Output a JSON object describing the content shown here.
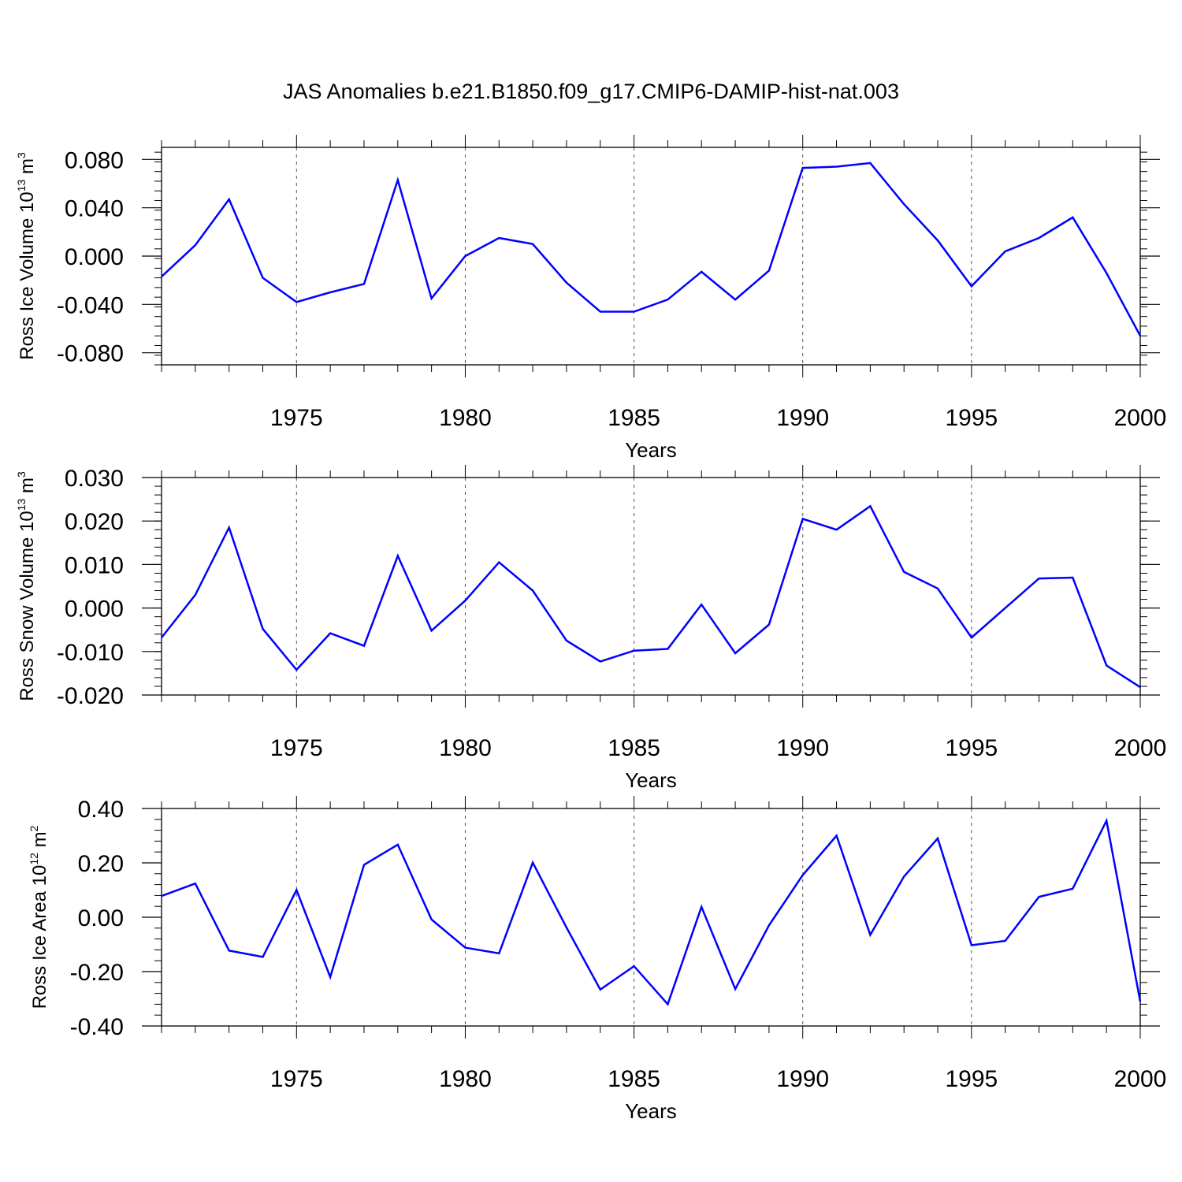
{
  "title": "JAS Anomalies b.e21.B1850.f09_g17.CMIP6-DAMIP-hist-nat.003",
  "colors": {
    "line": "#0000ff",
    "axis": "#000000",
    "grid": "#555555"
  },
  "chart_data": [
    {
      "type": "line",
      "ylabel": {
        "text": "Ross Ice Volume 10",
        "sup1": "13",
        "mid": " m",
        "sup2": "3"
      },
      "xlabel": "Years",
      "xlim": [
        1971,
        2000
      ],
      "ylim": [
        -0.09,
        0.09
      ],
      "yticks": [
        -0.08,
        -0.04,
        0.0,
        0.04,
        0.08
      ],
      "yticklabels": [
        "-0.080",
        "-0.040",
        "0.000",
        "0.040",
        "0.080"
      ],
      "xticks": [
        1975,
        1980,
        1985,
        1990,
        1995,
        2000
      ],
      "xticklabels": [
        "1975",
        "1980",
        "1985",
        "1990",
        "1995",
        "2000"
      ],
      "grid": "vertical dashed at labeled years",
      "x": [
        1971,
        1972,
        1973,
        1974,
        1975,
        1976,
        1977,
        1978,
        1979,
        1980,
        1981,
        1982,
        1983,
        1984,
        1985,
        1986,
        1987,
        1988,
        1989,
        1990,
        1991,
        1992,
        1993,
        1994,
        1995,
        1996,
        1997,
        1998,
        1999,
        2000
      ],
      "values": [
        -0.017,
        0.009,
        0.047,
        -0.018,
        -0.038,
        -0.03,
        -0.023,
        0.063,
        -0.035,
        0.0,
        0.015,
        0.01,
        -0.022,
        -0.046,
        -0.046,
        -0.036,
        -0.013,
        -0.036,
        -0.012,
        0.073,
        0.074,
        0.077,
        0.043,
        0.013,
        -0.025,
        0.004,
        0.015,
        0.032,
        -0.014,
        -0.066
      ]
    },
    {
      "type": "line",
      "ylabel": {
        "text": "Ross Snow Volume 10",
        "sup1": "13",
        "mid": " m",
        "sup2": "3"
      },
      "xlabel": "Years",
      "xlim": [
        1971,
        2000
      ],
      "ylim": [
        -0.02,
        0.03
      ],
      "yticks": [
        -0.02,
        -0.01,
        0.0,
        0.01,
        0.02,
        0.03
      ],
      "yticklabels": [
        "-0.020",
        "-0.010",
        "0.000",
        "0.010",
        "0.020",
        "0.030"
      ],
      "xticks": [
        1975,
        1980,
        1985,
        1990,
        1995,
        2000
      ],
      "xticklabels": [
        "1975",
        "1980",
        "1985",
        "1990",
        "1995",
        "2000"
      ],
      "grid": "vertical dashed at labeled years",
      "x": [
        1971,
        1972,
        1973,
        1974,
        1975,
        1976,
        1977,
        1978,
        1979,
        1980,
        1981,
        1982,
        1983,
        1984,
        1985,
        1986,
        1987,
        1988,
        1989,
        1990,
        1991,
        1992,
        1993,
        1994,
        1995,
        1996,
        1997,
        1998,
        1999,
        2000
      ],
      "values": [
        -0.0068,
        0.003,
        0.0185,
        -0.0048,
        -0.0142,
        -0.0058,
        -0.0087,
        0.012,
        -0.0052,
        0.0017,
        0.0105,
        0.004,
        -0.0075,
        -0.0123,
        -0.0098,
        -0.0094,
        0.0008,
        -0.0104,
        -0.0038,
        0.0205,
        0.018,
        0.0234,
        0.0083,
        0.0045,
        -0.0068,
        0.0,
        0.0068,
        0.007,
        -0.0132,
        -0.0182
      ]
    },
    {
      "type": "line",
      "ylabel": {
        "text": "Ross Ice Area 10",
        "sup1": "12",
        "mid": " m",
        "sup2": "2"
      },
      "xlabel": "Years",
      "xlim": [
        1971,
        2000
      ],
      "ylim": [
        -0.4,
        0.4
      ],
      "yticks": [
        -0.4,
        -0.2,
        0.0,
        0.2,
        0.4
      ],
      "yticklabels": [
        "-0.40",
        "-0.20",
        "0.00",
        "0.20",
        "0.40"
      ],
      "xticks": [
        1975,
        1980,
        1985,
        1990,
        1995,
        2000
      ],
      "xticklabels": [
        "1975",
        "1980",
        "1985",
        "1990",
        "1995",
        "2000"
      ],
      "grid": "vertical dashed at labeled years",
      "x": [
        1971,
        1972,
        1973,
        1974,
        1975,
        1976,
        1977,
        1978,
        1979,
        1980,
        1981,
        1982,
        1983,
        1984,
        1985,
        1986,
        1987,
        1988,
        1989,
        1990,
        1991,
        1992,
        1993,
        1994,
        1995,
        1996,
        1997,
        1998,
        1999,
        2000
      ],
      "values": [
        0.078,
        0.124,
        -0.123,
        -0.146,
        0.1,
        -0.22,
        0.193,
        0.267,
        -0.008,
        -0.112,
        -0.133,
        0.201,
        -0.038,
        -0.266,
        -0.18,
        -0.32,
        0.038,
        -0.264,
        -0.03,
        0.155,
        0.3,
        -0.065,
        0.15,
        0.29,
        -0.103,
        -0.087,
        0.075,
        0.105,
        0.355,
        -0.31
      ]
    }
  ]
}
